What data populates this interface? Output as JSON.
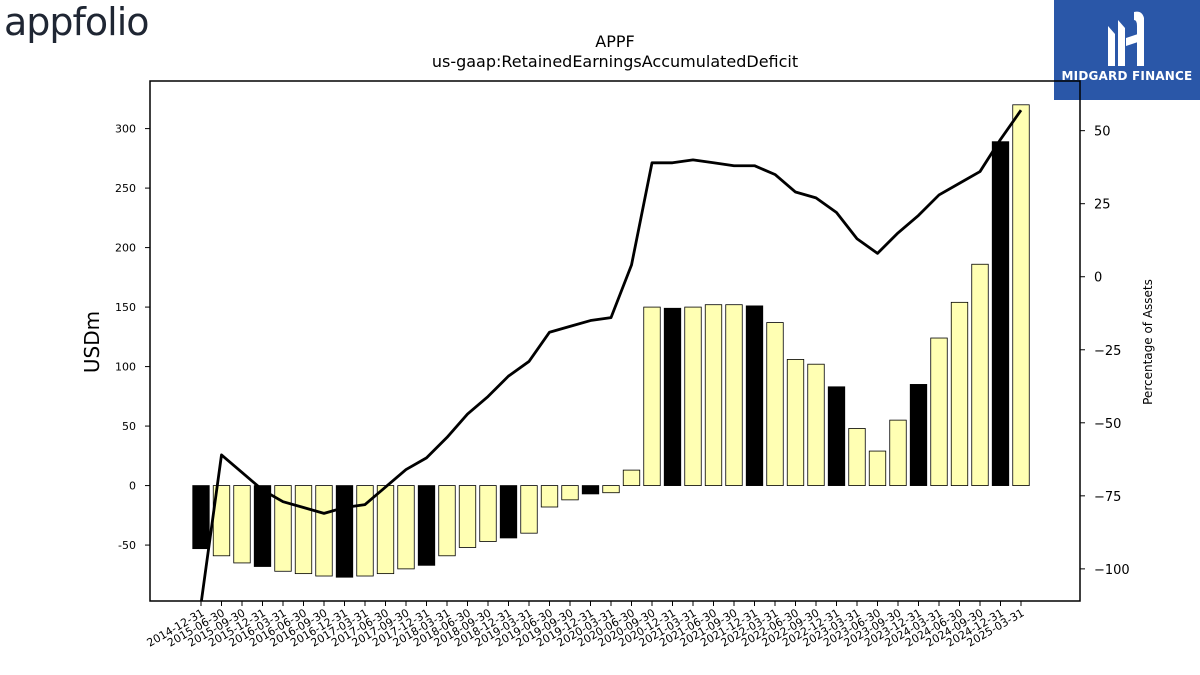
{
  "header": {
    "left_logo_text": "appfolio",
    "right_logo_text": "MIDGARD FINANCE",
    "title": "APPF",
    "subtitle": "us-gaap:RetainedEarningsAccumulatedDeficit"
  },
  "colors": {
    "bar_light": "#ffffb3",
    "bar_dark": "#000000",
    "line": "#000000",
    "brand_blue": "#2a57a8"
  },
  "chart_data": {
    "type": "bar",
    "title": "APPF",
    "subtitle": "us-gaap:RetainedEarningsAccumulatedDeficit",
    "ylabel": "USDm",
    "y2label": "Percentage of Assets",
    "ylim": [
      -97,
      340
    ],
    "y2lim": [
      -111,
      67
    ],
    "yticks": [
      -50,
      0,
      50,
      100,
      150,
      200,
      250,
      300
    ],
    "y2ticks": [
      -100,
      -75,
      -50,
      -25,
      0,
      25,
      50
    ],
    "categories": [
      "2014-12-31",
      "2015-06-30",
      "2015-09-30",
      "2015-12-31",
      "2016-03-31",
      "2016-06-30",
      "2016-09-30",
      "2016-12-31",
      "2017-03-31",
      "2017-06-30",
      "2017-09-30",
      "2017-12-31",
      "2018-03-31",
      "2018-06-30",
      "2018-09-30",
      "2018-12-31",
      "2019-03-31",
      "2019-06-30",
      "2019-09-30",
      "2019-12-31",
      "2020-03-31",
      "2020-06-30",
      "2020-09-30",
      "2020-12-31",
      "2021-03-31",
      "2021-06-30",
      "2021-09-30",
      "2021-12-31",
      "2022-03-31",
      "2022-06-30",
      "2022-09-30",
      "2022-12-31",
      "2023-03-31",
      "2023-06-30",
      "2023-09-30",
      "2023-12-31",
      "2024-03-31",
      "2024-06-30",
      "2024-09-30",
      "2024-12-31",
      "2025-03-31"
    ],
    "series": [
      {
        "type": "bar",
        "axis": "left",
        "values": [
          -53,
          -59,
          -65,
          -68,
          -72,
          -74,
          -76,
          -77,
          -76,
          -74,
          -70,
          -67,
          -59,
          -52,
          -47,
          -44,
          -40,
          -18,
          -12,
          -7,
          -6,
          13,
          150,
          149,
          150,
          152,
          152,
          151,
          137,
          106,
          102,
          83,
          48,
          29,
          55,
          85,
          124,
          154,
          186,
          289,
          320
        ],
        "highlight": [
          true,
          false,
          false,
          true,
          false,
          false,
          false,
          true,
          false,
          false,
          false,
          true,
          false,
          false,
          false,
          true,
          false,
          false,
          false,
          true,
          false,
          false,
          false,
          true,
          false,
          false,
          false,
          true,
          false,
          false,
          false,
          true,
          false,
          false,
          false,
          true,
          false,
          false,
          false,
          true,
          false
        ]
      },
      {
        "name": "Percentage of Assets",
        "type": "line",
        "axis": "right",
        "values": [
          -112,
          -61,
          -67,
          -73,
          -77,
          -79,
          -81,
          -79,
          -78,
          -72,
          -66,
          -62,
          -55,
          -47,
          -41,
          -34,
          -29,
          -19,
          -17,
          -15,
          -14,
          4,
          39,
          39,
          40,
          39,
          38,
          38,
          35,
          29,
          27,
          22,
          13,
          8,
          15,
          21,
          28,
          32,
          36,
          47,
          57
        ]
      }
    ],
    "grid": false,
    "legend": "none"
  }
}
